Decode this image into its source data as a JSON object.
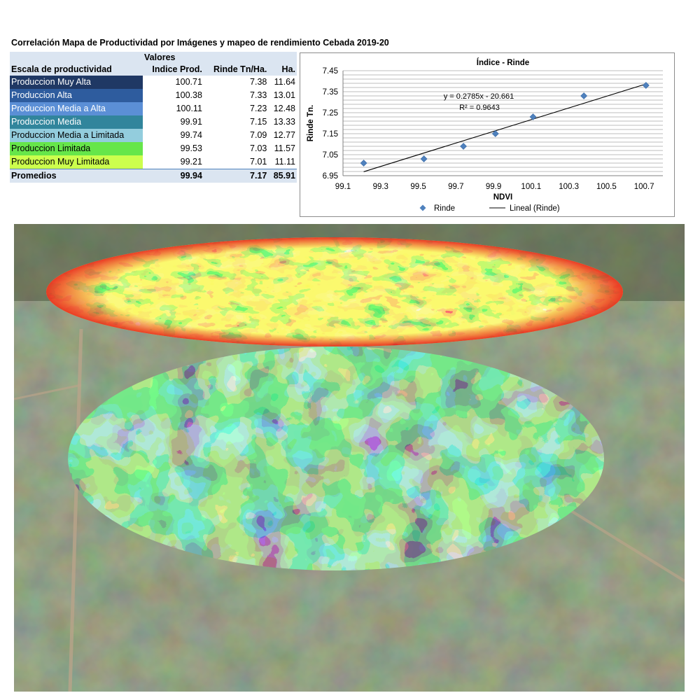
{
  "title": "Correlación Mapa de Productividad por Imágenes y mapeo de rendimiento Cebada 2019-20",
  "table": {
    "group_header": "Valores",
    "headers": [
      "Escala de productividad",
      "Indice Prod.",
      "Rinde Tn/Ha.",
      "Ha."
    ],
    "rows": [
      {
        "label": "Produccion Muy Alta",
        "indice": "100.71",
        "rinde": "7.38",
        "ha": "11.64",
        "color": "#1f3864"
      },
      {
        "label": "Produccion Alta",
        "indice": "100.38",
        "rinde": "7.33",
        "ha": "13.01",
        "color": "#2e5c9e"
      },
      {
        "label": "Produccion Media a Alta",
        "indice": "100.11",
        "rinde": "7.23",
        "ha": "12.48",
        "color": "#5b8fd6"
      },
      {
        "label": "Produccion Media",
        "indice": "99.91",
        "rinde": "7.15",
        "ha": "13.33",
        "color": "#31859c"
      },
      {
        "label": "Produccion Media a Limitada",
        "indice": "99.74",
        "rinde": "7.09",
        "ha": "12.77",
        "color": "#93cddd"
      },
      {
        "label": "Produccion Limitada",
        "indice": "99.53",
        "rinde": "7.03",
        "ha": "11.57",
        "color": "#66e64a"
      },
      {
        "label": "Produccion Muy Limitada",
        "indice": "99.21",
        "rinde": "7.01",
        "ha": "11.11",
        "color": "#ccff4d"
      }
    ],
    "averages": {
      "label": "Promedios",
      "indice": "99.94",
      "rinde": "7.17",
      "ha": "85.91"
    }
  },
  "chart_data": {
    "type": "scatter",
    "title": "Índice - Rinde",
    "xlabel": "NDVI",
    "ylabel": "Rinde Tn.",
    "xlim": [
      99.1,
      100.8
    ],
    "ylim": [
      6.95,
      7.45
    ],
    "xticks": [
      "99.1",
      "99.3",
      "99.5",
      "99.7",
      "99.9",
      "100.1",
      "100.3",
      "100.5",
      "100.7"
    ],
    "yticks": [
      "6.95",
      "7.05",
      "7.15",
      "7.25",
      "7.35",
      "7.45"
    ],
    "grid": true,
    "series": [
      {
        "name": "Rinde",
        "x": [
          99.21,
          99.53,
          99.74,
          99.91,
          100.11,
          100.38,
          100.71
        ],
        "y": [
          7.01,
          7.03,
          7.09,
          7.15,
          7.23,
          7.33,
          7.38
        ],
        "color": "#4f81bd"
      }
    ],
    "trendline": {
      "name": "Lineal (Rinde)",
      "slope": 0.2785,
      "intercept": -20.661,
      "color": "#000000"
    },
    "equation": "y = 0.2785x - 20.661",
    "r2": "R² = 0.9643",
    "legend_position": "bottom"
  },
  "scene": {
    "description_colors": {
      "ground": "#4a5a3a",
      "yield_map": [
        "#e8271c",
        "#f5a623",
        "#f7f12a",
        "#8ed632",
        "#2f9e45",
        "#1a4fa8"
      ],
      "ndvi_map": [
        "#b8f25a",
        "#6ecf3e",
        "#2fae6e",
        "#2b6fb0",
        "#13237a"
      ]
    }
  }
}
